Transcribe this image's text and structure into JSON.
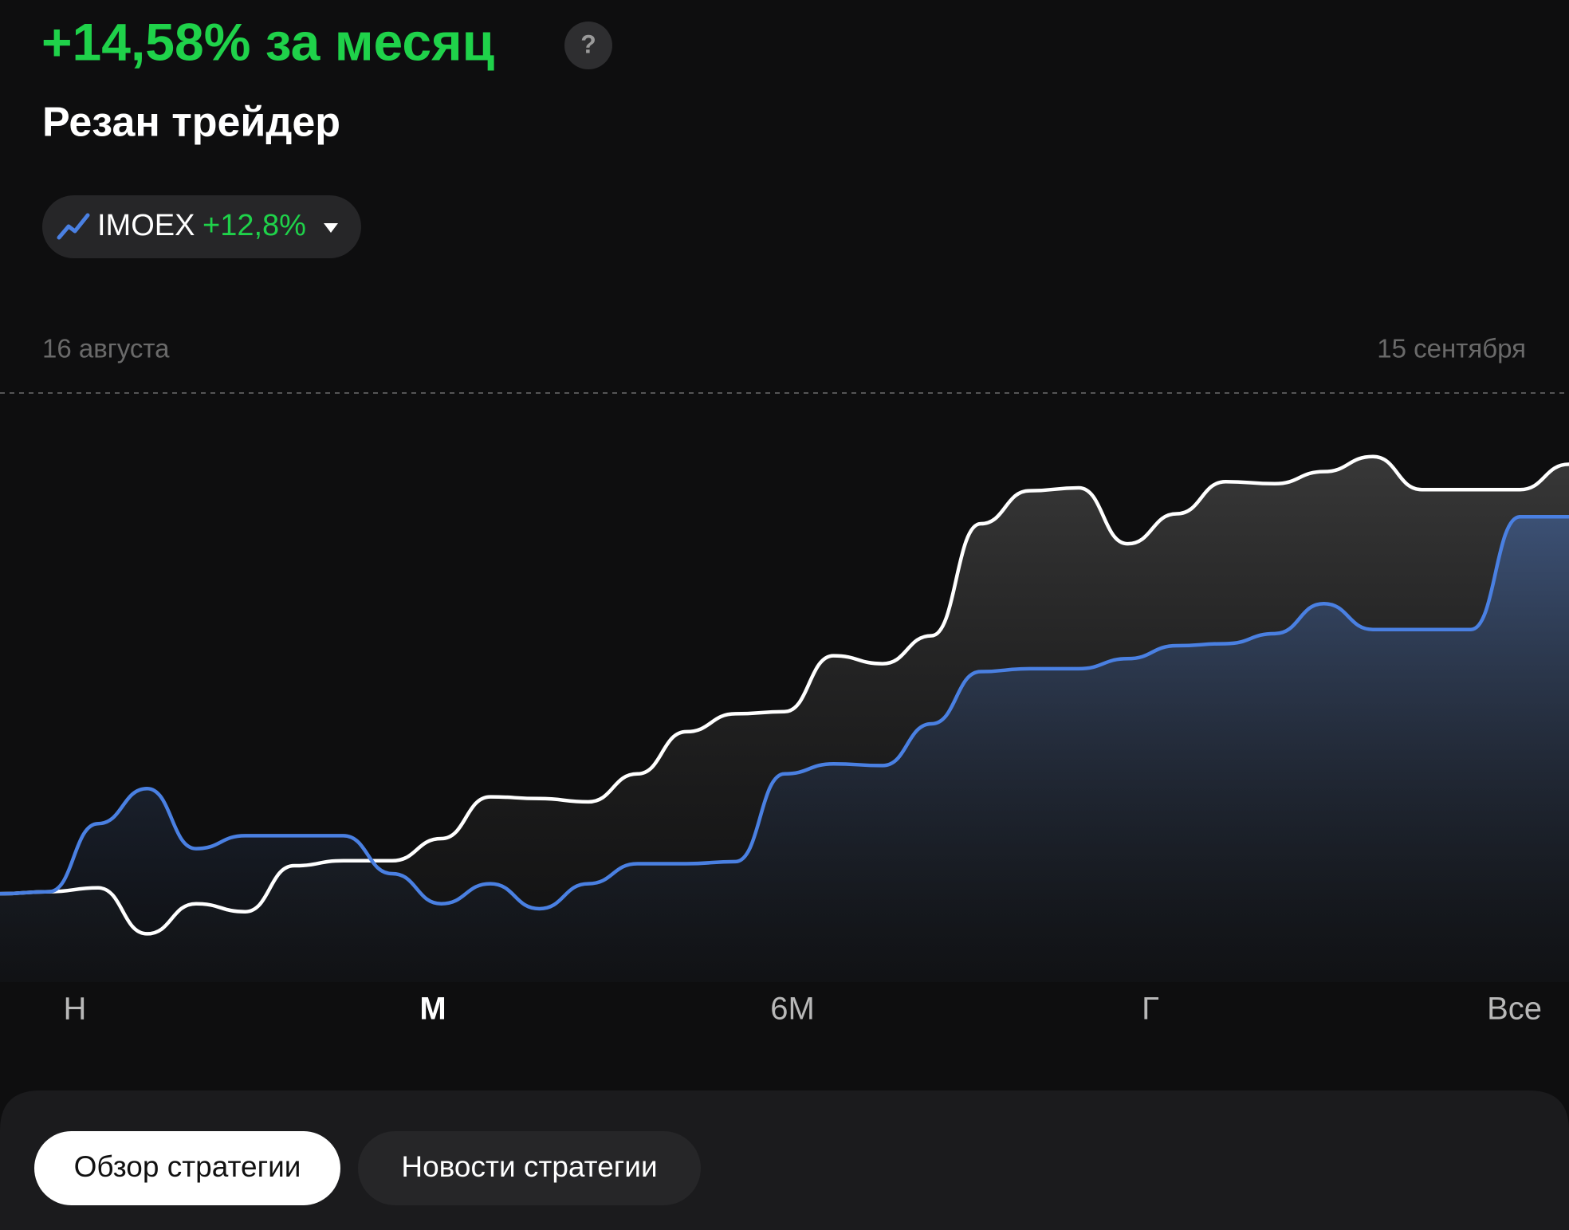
{
  "header": {
    "title": "+14,58% за месяц",
    "help_icon": "?"
  },
  "benchmark": {
    "change": "+12,8%"
  },
  "chart_data": {
    "type": "line",
    "date_range": [
      "16 августа",
      "15 сентября"
    ],
    "ylim": [
      -3,
      17
    ],
    "series": [
      {
        "name": "Резан трейдер",
        "color": "#ffffff",
        "values": [
          0,
          0.07,
          0.2,
          -1.36,
          -0.34,
          -0.61,
          0.95,
          1.12,
          1.12,
          1.87,
          3.29,
          3.23,
          3.12,
          4.07,
          5.5,
          6.11,
          6.18,
          8.08,
          7.81,
          8.76,
          12.56,
          13.68,
          13.78,
          11.88,
          12.9,
          13.99,
          13.92,
          14.33,
          14.84,
          13.72,
          13.72,
          13.72,
          14.58
        ]
      },
      {
        "name": "IMOEX",
        "color": "#4a80e2",
        "values": [
          0,
          0.07,
          2.38,
          3.57,
          1.53,
          1.97,
          1.97,
          1.97,
          0.68,
          -0.34,
          0.34,
          -0.51,
          0.34,
          1.02,
          1.02,
          1.09,
          4.07,
          4.41,
          4.35,
          5.77,
          7.54,
          7.64,
          7.64,
          7.98,
          8.42,
          8.49,
          8.83,
          9.85,
          8.97,
          8.97,
          8.97,
          12.8,
          12.8
        ]
      }
    ]
  },
  "periods": {
    "items": [
      "Н",
      "М",
      "6М",
      "Г",
      "Все"
    ],
    "selected_index": 1
  },
  "tabs": {
    "items": [
      "Обзор стратегии",
      "Новости стратегии"
    ],
    "active_index": 0
  }
}
